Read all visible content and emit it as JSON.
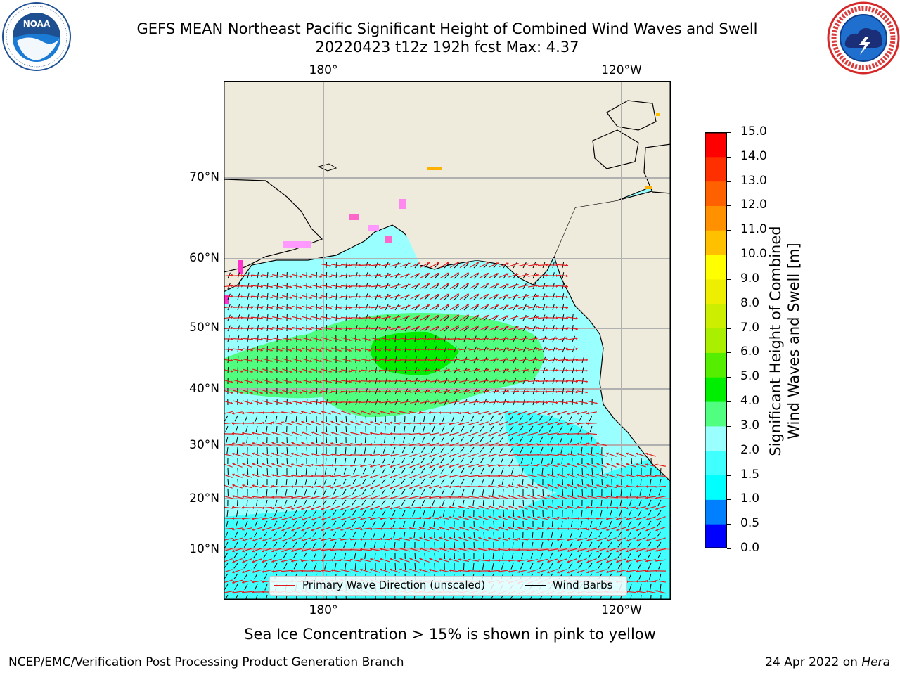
{
  "title": {
    "line1": "GEFS MEAN Northeast Pacific Significant Height of Combined Wind Waves and Swell",
    "line2": "20220423 t12z 192h fcst   Max: 4.37"
  },
  "logos": {
    "noaa_text": "NOAA",
    "noaa_ring": "NATIONAL OCEANIC AND ATMOSPHERIC ADMINISTRATION · U.S. DEPARTMENT OF COMMERCE",
    "nws_ring": "NATIONAL WEATHER SERVICE"
  },
  "map": {
    "lon_labels_top": [
      "180°",
      "120°W"
    ],
    "lon_labels_bottom": [
      "180°",
      "120°W"
    ],
    "lat_labels": [
      "70°N",
      "60°N",
      "50°N",
      "40°N",
      "30°N",
      "20°N",
      "10°N"
    ],
    "colors": {
      "ocean_base": "#99ffff",
      "land": "#efebdc",
      "grid": "#b0b0b0",
      "wave_arrow": "#e41a1c",
      "barb": "#000000"
    }
  },
  "legend": {
    "wave_label": "Primary Wave Direction (unscaled)",
    "wave_color": "#e41a1c",
    "barb_label": "Wind Barbs",
    "barb_color": "#000000"
  },
  "colorbar": {
    "title_line1": "Significant Height of Combined",
    "title_line2": "Wind Waves and Swell [m]",
    "ticks": [
      "0.0",
      "0.5",
      "1.0",
      "1.5",
      "2.0",
      "3.0",
      "4.0",
      "5.0",
      "6.0",
      "7.0",
      "8.0",
      "9.0",
      "10.0",
      "11.0",
      "12.0",
      "13.0",
      "14.0",
      "15.0"
    ],
    "colors": [
      "#0000ff",
      "#0080ff",
      "#00ffff",
      "#40ffff",
      "#99ffff",
      "#50ff80",
      "#00ee00",
      "#55ee00",
      "#aaee00",
      "#ccee00",
      "#eeee00",
      "#ffff00",
      "#ffc000",
      "#ff9000",
      "#ff6000",
      "#ff3000",
      "#ff0000"
    ]
  },
  "note": "Sea Ice Concentration > 15% is shown in pink to yellow",
  "footer": {
    "left": "NCEP/EMC/Verification Post Processing Product Generation Branch",
    "date": "24 Apr 2022 on ",
    "host": "Hera"
  }
}
